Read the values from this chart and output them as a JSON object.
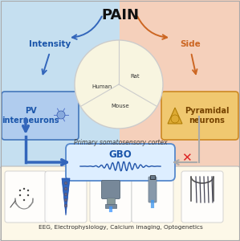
{
  "title": "PAIN",
  "title_fontsize": 13,
  "bg_left_color": "#c5dff0",
  "bg_right_color": "#f5d0bb",
  "bg_bottom_color": "#fdf8e8",
  "circle_bg_color": "#f8f5e0",
  "gbo_box_fill": "#ddeeff",
  "gbo_box_edge": "#5588cc",
  "pv_box_fill": "#b0ccee",
  "pv_box_edge": "#4477bb",
  "pyramid_box_fill": "#f0c870",
  "pyramid_box_edge": "#cc8822",
  "intensity_color": "#1a55aa",
  "side_color": "#cc6622",
  "pv_text_color": "#1a55aa",
  "pyramid_text_color": "#774400",
  "gbo_text_color": "#1a55aa",
  "cortex_text_color": "#444444",
  "arrow_blue": "#3366bb",
  "arrow_orange": "#cc6622",
  "arrow_gray": "#aaaaaa",
  "x_color": "#dd2222",
  "bottom_text_color": "#333333",
  "bottom_text": "EEG, Electrophysiology, Calcium imaging, Optogenetics",
  "cortex_text": "Primary somatosensory cortex",
  "wave_color": "#2255aa",
  "border_color": "#bbbbbb"
}
